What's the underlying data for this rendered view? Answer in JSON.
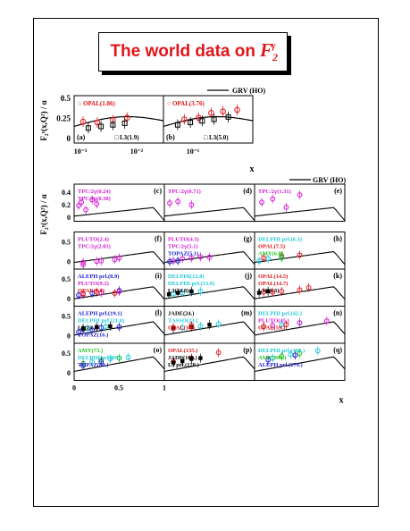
{
  "title": {
    "text": "The world data on",
    "symbol": "F",
    "sub": "2",
    "sup": "γ",
    "color": "#e2151b"
  },
  "ylabel": "F₂ᵞ(x,Q²) / α",
  "xlabel": "x",
  "grv_label": "GRV (HO)",
  "colors": {
    "red": "#e2151b",
    "magenta": "#d21bd2",
    "black": "#000000",
    "cyan": "#20c8d8",
    "green": "#20c020",
    "blue": "#1a1ad0"
  },
  "top_row": {
    "x_ticks": [
      "10⁻³",
      "10⁻²",
      "10⁻¹"
    ],
    "y_ticks": [
      "0.5",
      "0.25",
      "0"
    ]
  },
  "grid_x_ticks": [
    "0",
    "0.5",
    "1"
  ],
  "grid_y_ticks": [
    "0.5",
    "0"
  ],
  "first_grid_y_ticks": [
    "0.4",
    "0.2",
    "0"
  ],
  "chart_data": [
    {
      "type": "scatter",
      "panel": "a",
      "legend": [
        "OPAL(1.86)",
        "L3(1.9)"
      ],
      "series": [
        {
          "name": "OPAL(1.86)",
          "color": "red",
          "x": [
            0.002,
            0.006,
            0.02,
            0.06
          ],
          "y": [
            0.27,
            0.26,
            0.29,
            0.32
          ]
        },
        {
          "name": "L3(1.9)",
          "color": "black",
          "x": [
            0.003,
            0.008,
            0.02,
            0.05
          ],
          "y": [
            0.19,
            0.21,
            0.23,
            0.25
          ]
        }
      ]
    },
    {
      "type": "scatter",
      "panel": "b",
      "legend": [
        "OPAL(3.76)",
        "L3(5.0)"
      ],
      "series": [
        {
          "name": "OPAL(3.76)",
          "color": "red",
          "x": [
            0.005,
            0.015,
            0.04,
            0.1,
            0.3
          ],
          "y": [
            0.3,
            0.32,
            0.38,
            0.4,
            0.42
          ]
        },
        {
          "name": "L3(5.0)",
          "color": "black",
          "x": [
            0.003,
            0.008,
            0.02,
            0.05,
            0.15
          ],
          "y": [
            0.23,
            0.26,
            0.28,
            0.3,
            0.33
          ]
        }
      ]
    },
    {
      "type": "scatter",
      "panel": "c",
      "legend": [
        "TPC/2γ(0.24)",
        "TPC/2γ(0.38)"
      ],
      "series": [
        {
          "name": "TPC/2γ(0.24)",
          "color": "magenta",
          "x": [
            0.05,
            0.13,
            0.25
          ],
          "y": [
            0.19,
            0.14,
            0.21
          ]
        },
        {
          "name": "TPC/2γ(0.38)",
          "color": "magenta",
          "x": [
            0.08,
            0.2
          ],
          "y": [
            0.23,
            0.26
          ]
        }
      ]
    },
    {
      "type": "scatter",
      "panel": "d",
      "legend": [
        "TPC/2γ(0.71)"
      ],
      "series": [
        {
          "name": "TPC/2γ(0.71)",
          "color": "magenta",
          "x": [
            0.06,
            0.15,
            0.3
          ],
          "y": [
            0.22,
            0.24,
            0.2
          ]
        }
      ]
    },
    {
      "type": "scatter",
      "panel": "e",
      "legend": [
        "TPC/2γ(1.31)"
      ],
      "series": [
        {
          "name": "TPC/2γ(1.31)",
          "color": "magenta",
          "x": [
            0.08,
            0.2,
            0.35,
            0.5
          ],
          "y": [
            0.23,
            0.27,
            0.17,
            0.32
          ]
        }
      ]
    },
    {
      "type": "scatter",
      "panel": "f",
      "legend": [
        "PLUTO(2.4)",
        "TPC/2γ(2.83)"
      ],
      "series": [
        {
          "name": "PLUTO(2.4)",
          "color": "magenta",
          "x": [
            0.1,
            0.3,
            0.5
          ],
          "y": [
            0.18,
            0.22,
            0.3
          ]
        },
        {
          "name": "TPC/2γ(2.83)",
          "color": "magenta",
          "x": [
            0.1,
            0.25,
            0.45
          ],
          "y": [
            0.12,
            0.21,
            0.26
          ]
        }
      ]
    },
    {
      "type": "scatter",
      "panel": "g",
      "legend": [
        "PLUTO(4.3)",
        "TPC/2γ(5.1)",
        "TOPAZ(5.1)"
      ],
      "series": [
        {
          "name": "PLUTO(4.3)",
          "color": "magenta",
          "x": [
            0.1,
            0.3,
            0.5
          ],
          "y": [
            0.22,
            0.3,
            0.32
          ]
        },
        {
          "name": "TPC/2γ(5.1)",
          "color": "magenta",
          "x": [
            0.2,
            0.4
          ],
          "y": [
            0.28,
            0.33
          ]
        },
        {
          "name": "TOPAZ(5.1)",
          "color": "blue",
          "x": [
            0.06,
            0.15
          ],
          "y": [
            0.2,
            0.22
          ]
        }
      ]
    },
    {
      "type": "scatter",
      "panel": "h",
      "legend": [
        "DELPHI prl.(6.3)",
        "OPAL(7.5)",
        "AMY(6.8)"
      ],
      "series": [
        {
          "name": "DELPHI prl.(6.3)",
          "color": "cyan",
          "x": [
            0.05,
            0.15,
            0.3
          ],
          "y": [
            0.22,
            0.28,
            0.3
          ]
        },
        {
          "name": "OPAL(7.5)",
          "color": "red",
          "x": [
            0.1,
            0.3,
            0.5
          ],
          "y": [
            0.3,
            0.35,
            0.38
          ]
        },
        {
          "name": "AMY(6.8)",
          "color": "green",
          "x": [
            0.3
          ],
          "y": [
            0.32
          ]
        }
      ]
    },
    {
      "type": "scatter",
      "panel": "i",
      "legend": [
        "ALEPH prl.(8.9)",
        "PLUTO(9.2)",
        "OPAL(9.0)"
      ],
      "series": [
        {
          "name": "ALEPH prl.(8.9)",
          "color": "blue",
          "x": [
            0.05,
            0.2,
            0.5
          ],
          "y": [
            0.3,
            0.35,
            0.42
          ]
        },
        {
          "name": "PLUTO(9.2)",
          "color": "magenta",
          "x": [
            0.1,
            0.3,
            0.5
          ],
          "y": [
            0.32,
            0.36,
            0.4
          ]
        },
        {
          "name": "OPAL(9.0)",
          "color": "red",
          "x": [
            0.1,
            0.25,
            0.45
          ],
          "y": [
            0.34,
            0.38,
            0.35
          ]
        }
      ]
    },
    {
      "type": "scatter",
      "panel": "j",
      "legend": [
        "DELPHI(12.0)",
        "DELPHI prl.(13.0)",
        "L3(10.8)"
      ],
      "series": [
        {
          "name": "DELPHI(12.0)",
          "color": "cyan",
          "x": [
            0.1,
            0.3
          ],
          "y": [
            0.33,
            0.38
          ]
        },
        {
          "name": "DELPHI prl.(13.0)",
          "color": "cyan",
          "x": [
            0.2,
            0.4
          ],
          "y": [
            0.36,
            0.4
          ]
        },
        {
          "name": "L3(10.8)",
          "color": "black",
          "x": [
            0.05,
            0.15,
            0.3
          ],
          "y": [
            0.32,
            0.36,
            0.4
          ]
        }
      ]
    },
    {
      "type": "scatter",
      "panel": "k",
      "legend": [
        "OPAL(14.5)",
        "OPAL(14.7)",
        "L3(15.3)"
      ],
      "series": [
        {
          "name": "OPAL(14.5)",
          "color": "red",
          "x": [
            0.1,
            0.3,
            0.6
          ],
          "y": [
            0.38,
            0.4,
            0.5
          ]
        },
        {
          "name": "OPAL(14.7)",
          "color": "red",
          "x": [
            0.2,
            0.5
          ],
          "y": [
            0.38,
            0.44
          ]
        },
        {
          "name": "L3(15.3)",
          "color": "black",
          "x": [
            0.05,
            0.15
          ],
          "y": [
            0.36,
            0.4
          ]
        }
      ]
    },
    {
      "type": "scatter",
      "panel": "l",
      "legend": [
        "ALEPH prl.(19.1)",
        "DELPHI prl.(21.0)",
        "L3(23.1)",
        "TOPAZ(16.)"
      ],
      "series": [
        {
          "name": "ALEPH prl.(19.1)",
          "color": "blue",
          "x": [
            0.1,
            0.3,
            0.5
          ],
          "y": [
            0.38,
            0.42,
            0.44
          ]
        },
        {
          "name": "DELPHI prl.(21.0)",
          "color": "cyan",
          "x": [
            0.15,
            0.35
          ],
          "y": [
            0.4,
            0.45
          ]
        },
        {
          "name": "L3(23.1)",
          "color": "black",
          "x": [
            0.1,
            0.25,
            0.4
          ],
          "y": [
            0.4,
            0.44,
            0.46
          ]
        },
        {
          "name": "TOPAZ(16.)",
          "color": "blue",
          "x": [
            0.05,
            0.2
          ],
          "y": [
            0.3,
            0.36
          ]
        }
      ]
    },
    {
      "type": "scatter",
      "panel": "m",
      "legend": [
        "JADE(24.)",
        "TASSO(23.)",
        "OPAL(30.)"
      ],
      "series": [
        {
          "name": "JADE(24.)",
          "color": "black",
          "x": [
            0.1,
            0.3,
            0.5
          ],
          "y": [
            0.4,
            0.44,
            0.5
          ]
        },
        {
          "name": "TASSO(23.)",
          "color": "cyan",
          "x": [
            0.2,
            0.4,
            0.6
          ],
          "y": [
            0.42,
            0.46,
            0.52
          ]
        },
        {
          "name": "OPAL(30.)",
          "color": "red",
          "x": [
            0.1,
            0.3
          ],
          "y": [
            0.42,
            0.48
          ]
        }
      ]
    },
    {
      "type": "scatter",
      "panel": "n",
      "legend": [
        "DELPHI prl.(42.)",
        "PLUTO(45.)",
        "OPAL(59.)"
      ],
      "series": [
        {
          "name": "DELPHI prl.(42.)",
          "color": "cyan",
          "x": [
            0.1,
            0.3,
            0.5
          ],
          "y": [
            0.45,
            0.5,
            0.55
          ]
        },
        {
          "name": "PLUTO(45.)",
          "color": "magenta",
          "x": [
            0.2,
            0.5,
            0.8
          ],
          "y": [
            0.48,
            0.55,
            0.6
          ]
        },
        {
          "name": "OPAL(59.)",
          "color": "red",
          "x": [
            0.1,
            0.35
          ],
          "y": [
            0.45,
            0.5
          ]
        }
      ]
    },
    {
      "type": "scatter",
      "panel": "o",
      "legend": [
        "AMY(73.)",
        "DELPHI prl.(99.)",
        "TOPAZ(80.)"
      ],
      "series": [
        {
          "name": "AMY(73.)",
          "color": "green",
          "x": [
            0.1,
            0.3,
            0.5
          ],
          "y": [
            0.45,
            0.55,
            0.6
          ]
        },
        {
          "name": "DELPHI prl.(99.)",
          "color": "cyan",
          "x": [
            0.2,
            0.4,
            0.6
          ],
          "y": [
            0.5,
            0.58,
            0.62
          ]
        },
        {
          "name": "TOPAZ(80.)",
          "color": "blue",
          "x": [
            0.1,
            0.3
          ],
          "y": [
            0.4,
            0.5
          ]
        }
      ]
    },
    {
      "type": "scatter",
      "panel": "p",
      "legend": [
        "OPAL(135.)",
        "JADE(100.)",
        "L3 prl.(120.)"
      ],
      "series": [
        {
          "name": "OPAL(135.)",
          "color": "red",
          "x": [
            0.1,
            0.3,
            0.6
          ],
          "y": [
            0.5,
            0.6,
            0.75
          ]
        },
        {
          "name": "JADE(100.)",
          "color": "black",
          "x": [
            0.2,
            0.4
          ],
          "y": [
            0.52,
            0.6
          ]
        },
        {
          "name": "L3 prl.(120.)",
          "color": "black",
          "x": [
            0.1,
            0.3
          ],
          "y": [
            0.48,
            0.58
          ]
        }
      ]
    },
    {
      "type": "scatter",
      "panel": "q",
      "legend": [
        "DELPHI prl.(400.)",
        "AMY(390.)",
        "ALEPH prl.(279.)"
      ],
      "series": [
        {
          "name": "DELPHI prl.(400.)",
          "color": "cyan",
          "x": [
            0.2,
            0.4,
            0.7
          ],
          "y": [
            0.6,
            0.7,
            0.8
          ]
        },
        {
          "name": "AMY(390.)",
          "color": "green",
          "x": [
            0.3,
            0.5
          ],
          "y": [
            0.65,
            0.72
          ]
        },
        {
          "name": "ALEPH prl.(279.)",
          "color": "blue",
          "x": [
            0.15,
            0.45
          ],
          "y": [
            0.55,
            0.68
          ]
        }
      ]
    }
  ]
}
